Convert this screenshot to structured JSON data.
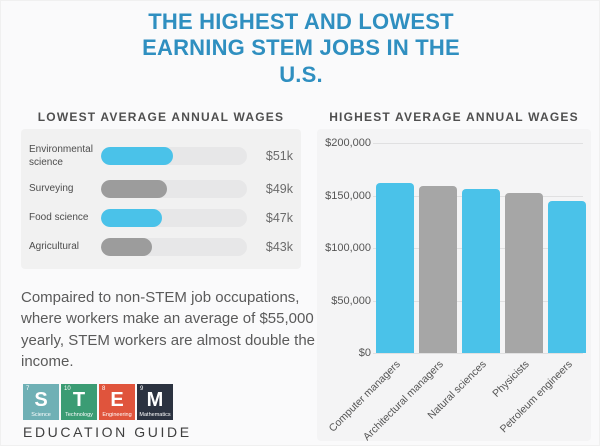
{
  "title": "THE HIGHEST AND LOWEST EARNING STEM JOBS IN THE U.S.",
  "colors": {
    "title_blue": "#2F8FC0",
    "bar_blue": "#4AC2E9",
    "bar_gray_pill": "#9C9C9C",
    "bar_gray_column": "#A6A6A6",
    "pill_track": "#E7E7E8",
    "card_bg_left": "#F1F1F1",
    "card_bg_right": "#F4F4F5",
    "page_bg": "#FAFAFB"
  },
  "chart_data": [
    {
      "type": "bar",
      "orientation": "horizontal",
      "title": "LOWEST AVERAGE ANNUAL WAGES",
      "categories": [
        "Environmental science",
        "Surveying",
        "Food science",
        "Agricultural"
      ],
      "values": [
        51000,
        49000,
        47000,
        43000
      ],
      "value_labels": [
        "$51k",
        "$49k",
        "$47k",
        "$43k"
      ],
      "bar_colors": [
        "blue",
        "gray",
        "blue",
        "gray"
      ],
      "fill_pct": [
        49,
        45,
        42,
        35
      ],
      "grid": false,
      "legend": false
    },
    {
      "type": "bar",
      "orientation": "vertical",
      "title": "HIGHEST AVERAGE ANNUAL WAGES",
      "categories": [
        "Computer managers",
        "Architectural managers",
        "Natural sciences",
        "Physicists",
        "Petroleum engineers"
      ],
      "values": [
        162000,
        159000,
        156000,
        152000,
        145000
      ],
      "bar_colors": [
        "blue",
        "gray",
        "blue",
        "gray",
        "blue"
      ],
      "ylim": [
        0,
        200000
      ],
      "y_ticks_top_to_bottom": [
        "$200,000",
        "$150,000",
        "$100,000",
        "$50,000",
        "$0"
      ],
      "grid": true,
      "legend": false
    }
  ],
  "caption": "Compaired to non-STEM job occupations, where workers make an average of $55,000 yearly, STEM workers are almost double the income.",
  "logo": {
    "tiles": [
      {
        "letter": "S",
        "number": "7",
        "label": "Science",
        "color": "#6FB0B5"
      },
      {
        "letter": "T",
        "number": "10",
        "label": "Technology",
        "color": "#3B9C74"
      },
      {
        "letter": "E",
        "number": "8",
        "label": "Engineering",
        "color": "#E0543C"
      },
      {
        "letter": "M",
        "number": "9",
        "label": "Mathematics",
        "color": "#2B3240"
      }
    ],
    "subtitle": "EDUCATION GUIDE"
  }
}
